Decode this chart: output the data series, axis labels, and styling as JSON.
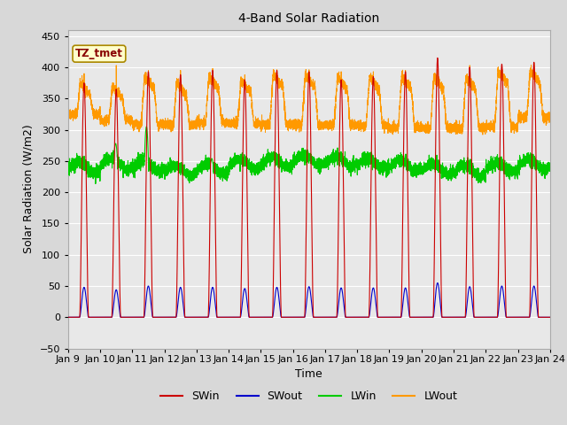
{
  "title": "4-Band Solar Radiation",
  "xlabel": "Time",
  "ylabel": "Solar Radiation (W/m2)",
  "ylim": [
    -50,
    460
  ],
  "annotation_text": "TZ_tmet",
  "annotation_bg": "#ffffcc",
  "annotation_border": "#aa8800",
  "SWin_color": "#cc0000",
  "SWout_color": "#0000cc",
  "LWin_color": "#00cc00",
  "LWout_color": "#ff9900",
  "plot_bg": "#e8e8e8",
  "fig_bg": "#d8d8d8",
  "x_tick_labels": [
    "Jan 9",
    "Jan 10",
    "Jan 11",
    "Jan 12",
    "Jan 13",
    "Jan 14",
    "Jan 15",
    "Jan 16",
    "Jan 17",
    "Jan 18",
    "Jan 19",
    "Jan 20",
    "Jan 21",
    "Jan 22",
    "Jan 23",
    "Jan 24"
  ],
  "num_days": 15,
  "legend_entries": [
    "SWin",
    "SWout",
    "LWin",
    "LWout"
  ]
}
